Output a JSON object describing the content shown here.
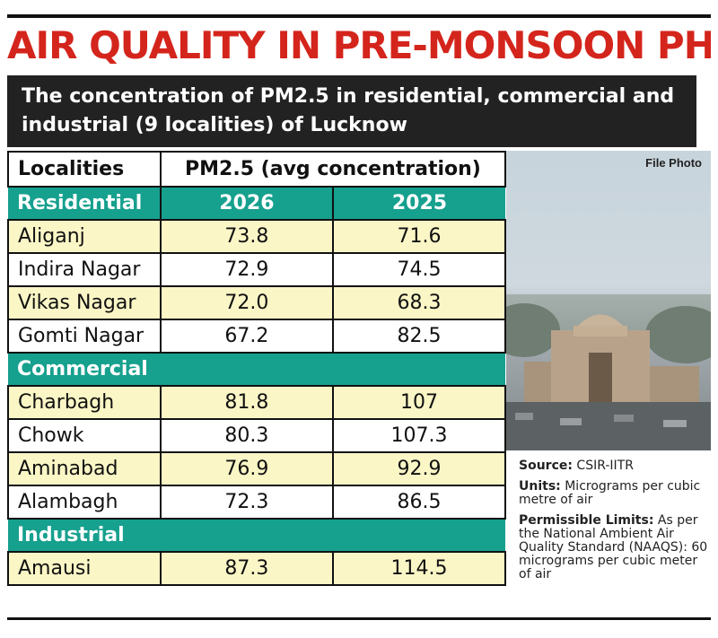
{
  "title": "AIR QUALITY IN PRE-MONSOON PHASE",
  "subtitle": "The concentration of PM2.5 in residential, commercial and industrial (9 localities) of Lucknow",
  "photo_credit": "File Photo",
  "notes": {
    "source_label": "Source:",
    "source_value": "CSIR-IITR",
    "units_label": "Units:",
    "units_value": "Micrograms per cubic metre of air",
    "limits_label": "Permissible Limits:",
    "limits_value": "As per the National Ambient Air Quality Standard (NAAQS): 60 micrograms per cubic meter of air"
  },
  "chart_data": {
    "type": "table",
    "header": {
      "col1": "Localities",
      "col2": "PM2.5 (avg concentration)"
    },
    "sections": [
      {
        "name": "Residential",
        "year_a": "2026",
        "year_b": "2025",
        "rows": [
          {
            "locality": "Aliganj",
            "v2026": "73.8",
            "v2025": "71.6"
          },
          {
            "locality": "Indira Nagar",
            "v2026": "72.9",
            "v2025": "74.5"
          },
          {
            "locality": "Vikas Nagar",
            "v2026": "72.0",
            "v2025": "68.3"
          },
          {
            "locality": "Gomti Nagar",
            "v2026": "67.2",
            "v2025": "82.5"
          }
        ]
      },
      {
        "name": "Commercial",
        "rows": [
          {
            "locality": "Charbagh",
            "v2026": "81.8",
            "v2025": "107"
          },
          {
            "locality": "Chowk",
            "v2026": "80.3",
            "v2025": "107.3"
          },
          {
            "locality": "Aminabad",
            "v2026": "76.9",
            "v2025": "92.9"
          },
          {
            "locality": "Alambagh",
            "v2026": "72.3",
            "v2025": "86.5"
          }
        ]
      },
      {
        "name": "Industrial",
        "rows": [
          {
            "locality": "Amausi",
            "v2026": "87.3",
            "v2025": "114.5"
          }
        ]
      }
    ]
  }
}
